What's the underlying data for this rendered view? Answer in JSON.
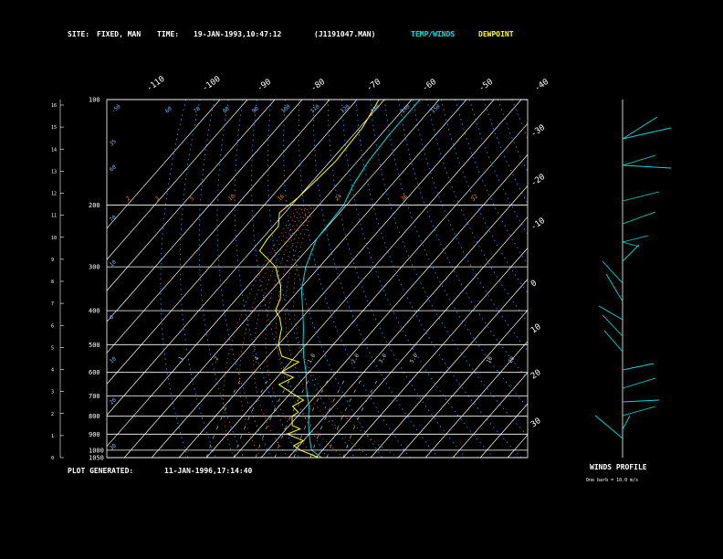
{
  "header": {
    "site_label": "SITE:",
    "site_value": "FIXED, MAN",
    "time_label": "TIME:",
    "time_value": "19-JAN-1993,10:47:12",
    "file_value": "(J1191047.MAN)",
    "legend_temp": "TEMP/WINDS",
    "legend_dew": "DEWPOINT"
  },
  "footer": {
    "generated_label": "PLOT GENERATED:",
    "generated_value": "11-JAN-1996,17:14:40"
  },
  "winds_panel": {
    "title": "WINDS PROFILE",
    "note": "One barb = 10.0 m/s"
  },
  "colors": {
    "temp": "#00d8d8",
    "dewpoint": "#ffff00",
    "grid": "#ffffff",
    "mixing": "#ff8000",
    "dry_adiabat": "#3399ff",
    "label": "#7fb2ff"
  },
  "chart_data": {
    "type": "line",
    "pressure_labels": [
      "100",
      "200",
      "300",
      "400",
      "500",
      "600",
      "700",
      "800",
      "900",
      "1000",
      "1050"
    ],
    "pressure_levels": [
      100,
      200,
      300,
      400,
      500,
      600,
      700,
      800,
      900,
      1000,
      1050
    ],
    "height_km_labels": [
      "16",
      "15",
      "14",
      "13",
      "12",
      "11",
      "10",
      "9",
      "8",
      "7",
      "6",
      "5",
      "4",
      "3",
      "2",
      "1",
      "0"
    ],
    "top_temp_labels": [
      "-110",
      "-100",
      "-90",
      "-80",
      "-70",
      "-60",
      "-50",
      "-40"
    ],
    "right_temp_labels": [
      "-30",
      "-20",
      "-10",
      "0",
      "10",
      "20",
      "30"
    ],
    "mixing_ratio_labels": [
      ".1",
      ".2",
      ".4",
      "1.0",
      "2.0",
      "3.0",
      "5.0",
      "10",
      "20"
    ],
    "isotherm_top_labels": [
      "-50",
      "60",
      "70",
      "80",
      "90",
      "100",
      "110",
      "120",
      "130",
      "140",
      "150"
    ],
    "inner_labels_mid": [
      "2",
      "3",
      "5",
      "10",
      "16",
      "24",
      "36",
      "52"
    ],
    "side_left_labels": [
      "60",
      "70",
      "10",
      "0",
      "10",
      "20",
      "30",
      "35"
    ],
    "series": [
      {
        "name": "TEMP/WINDS",
        "points_p_t": [
          [
            1050,
            12
          ],
          [
            1000,
            6
          ],
          [
            950,
            3
          ],
          [
            900,
            0
          ],
          [
            850,
            -3
          ],
          [
            800,
            -6
          ],
          [
            750,
            -9
          ],
          [
            700,
            -13
          ],
          [
            650,
            -17
          ],
          [
            600,
            -21
          ],
          [
            550,
            -26
          ],
          [
            500,
            -31
          ],
          [
            450,
            -36
          ],
          [
            400,
            -42
          ],
          [
            350,
            -49
          ],
          [
            300,
            -55
          ],
          [
            250,
            -60
          ],
          [
            200,
            -61
          ],
          [
            175,
            -64
          ],
          [
            150,
            -66
          ],
          [
            125,
            -67
          ],
          [
            110,
            -67
          ],
          [
            100,
            -67
          ]
        ]
      },
      {
        "name": "DEWPOINT",
        "points_p_t": [
          [
            1050,
            11
          ],
          [
            1000,
            2
          ],
          [
            970,
            -2
          ],
          [
            940,
            0
          ],
          [
            900,
            -8
          ],
          [
            870,
            -5
          ],
          [
            850,
            -9
          ],
          [
            800,
            -12
          ],
          [
            780,
            -11
          ],
          [
            750,
            -15
          ],
          [
            720,
            -13
          ],
          [
            700,
            -17
          ],
          [
            650,
            -27
          ],
          [
            620,
            -24
          ],
          [
            600,
            -30
          ],
          [
            560,
            -27
          ],
          [
            540,
            -35
          ],
          [
            500,
            -40
          ],
          [
            450,
            -44
          ],
          [
            420,
            -48
          ],
          [
            400,
            -52
          ],
          [
            370,
            -54
          ],
          [
            340,
            -58
          ],
          [
            320,
            -62
          ],
          [
            300,
            -66
          ],
          [
            270,
            -77
          ],
          [
            250,
            -78
          ],
          [
            230,
            -78
          ],
          [
            210,
            -82
          ],
          [
            190,
            -80
          ],
          [
            170,
            -79
          ],
          [
            150,
            -78
          ],
          [
            120,
            -79
          ],
          [
            100,
            -82
          ]
        ]
      }
    ]
  }
}
